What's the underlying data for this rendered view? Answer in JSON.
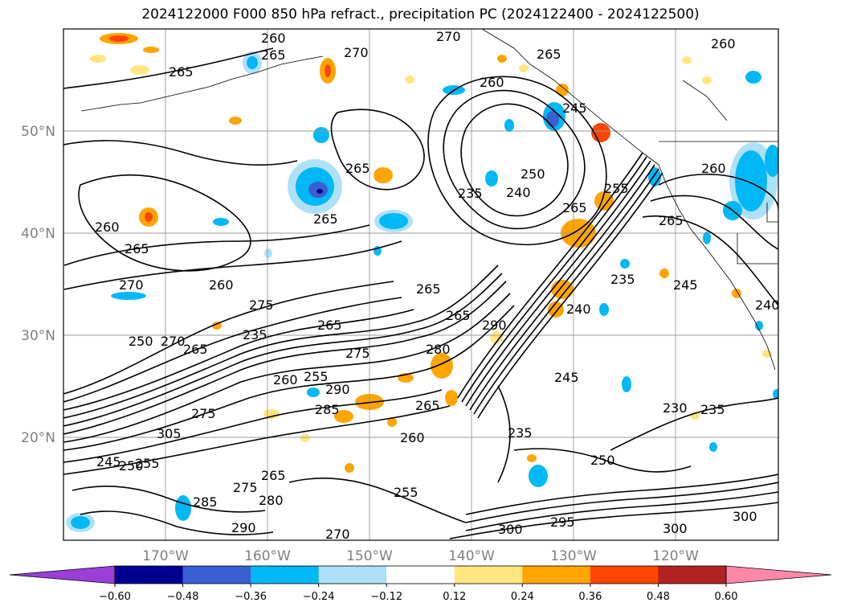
{
  "title": "2024122000 F000 850 hPa refract., precipitation PC (2024122400 - 2024122500)",
  "lat_labels": [
    "50°N",
    "40°N",
    "30°N",
    "20°N"
  ],
  "lon_labels": [
    "170°W",
    "160°W",
    "150°W",
    "140°W",
    "130°W",
    "120°W"
  ],
  "colorbar": {
    "ticks": [
      "−0.60",
      "−0.48",
      "−0.36",
      "−0.24",
      "−0.12",
      "0.12",
      "0.24",
      "0.36",
      "0.48",
      "0.60"
    ],
    "colors": [
      "#9b3fd6",
      "#000090",
      "#3a5fd0",
      "#00b8f5",
      "#aee0f8",
      "#ffffff",
      "#ffe680",
      "#ffa500",
      "#ff4500",
      "#b22222",
      "#ff88aa",
      "#ff88aa"
    ]
  },
  "contour_labels": [
    {
      "text": "260"
    },
    {
      "text": "270"
    },
    {
      "text": "265"
    },
    {
      "text": "270"
    },
    {
      "text": "260"
    },
    {
      "text": "265"
    },
    {
      "text": "265"
    },
    {
      "text": "260"
    },
    {
      "text": "265"
    },
    {
      "text": "250"
    },
    {
      "text": "265"
    },
    {
      "text": "235"
    },
    {
      "text": "240"
    },
    {
      "text": "265"
    },
    {
      "text": "255"
    },
    {
      "text": "260"
    },
    {
      "text": "260"
    },
    {
      "text": "265"
    },
    {
      "text": "265"
    },
    {
      "text": "270"
    },
    {
      "text": "275"
    },
    {
      "text": "265"
    },
    {
      "text": "235"
    },
    {
      "text": "265"
    },
    {
      "text": "260"
    },
    {
      "text": "290"
    },
    {
      "text": "240"
    },
    {
      "text": "235"
    },
    {
      "text": "245"
    },
    {
      "text": "240"
    },
    {
      "text": "265"
    },
    {
      "text": "275"
    },
    {
      "text": "280"
    },
    {
      "text": "260"
    },
    {
      "text": "255"
    },
    {
      "text": "290"
    },
    {
      "text": "285"
    },
    {
      "text": "275"
    },
    {
      "text": "265"
    },
    {
      "text": "245"
    },
    {
      "text": "235"
    },
    {
      "text": "230"
    },
    {
      "text": "235"
    },
    {
      "text": "250"
    },
    {
      "text": "260"
    },
    {
      "text": "255"
    },
    {
      "text": "275"
    },
    {
      "text": "265"
    },
    {
      "text": "285"
    },
    {
      "text": "280"
    },
    {
      "text": "290"
    },
    {
      "text": "270"
    },
    {
      "text": "300"
    },
    {
      "text": "295"
    },
    {
      "text": "300"
    },
    {
      "text": "300"
    },
    {
      "text": "245"
    },
    {
      "text": "250"
    },
    {
      "text": "255"
    },
    {
      "text": "305"
    },
    {
      "text": "270"
    },
    {
      "text": "250"
    },
    {
      "text": "265"
    },
    {
      "text": "245"
    }
  ]
}
